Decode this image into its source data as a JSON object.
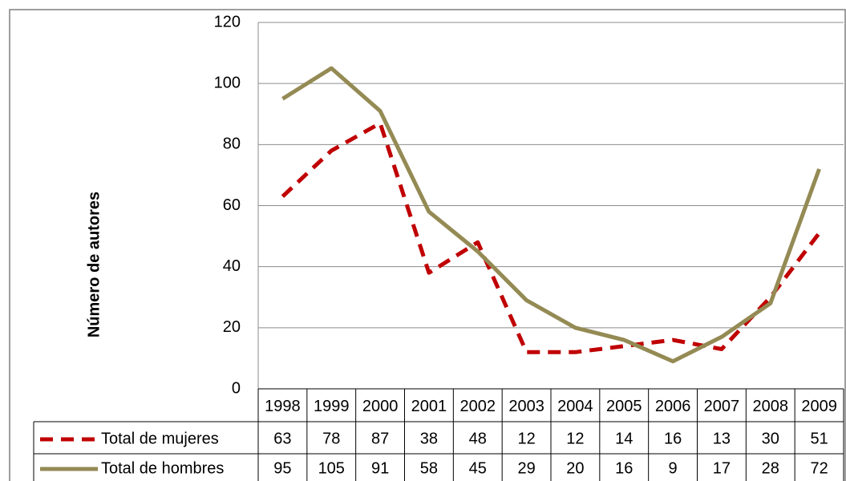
{
  "chart_data": {
    "type": "line",
    "y_label": "Número de autores",
    "categories": [
      "1998",
      "1999",
      "2000",
      "2001",
      "2002",
      "2003",
      "2004",
      "2005",
      "2006",
      "2007",
      "2008",
      "2009"
    ],
    "series": [
      {
        "name": "Total de mujeres",
        "color": "#c00000",
        "dashed": true,
        "values": [
          63,
          78,
          87,
          38,
          48,
          12,
          12,
          14,
          16,
          13,
          30,
          51
        ]
      },
      {
        "name": "Total de hombres",
        "color": "#948a54",
        "dashed": false,
        "values": [
          95,
          105,
          91,
          58,
          45,
          29,
          20,
          16,
          9,
          17,
          28,
          72
        ]
      }
    ],
    "ylim": [
      0,
      120
    ],
    "yticks": [
      0,
      20,
      40,
      60,
      80,
      100,
      120
    ],
    "grid": true
  }
}
